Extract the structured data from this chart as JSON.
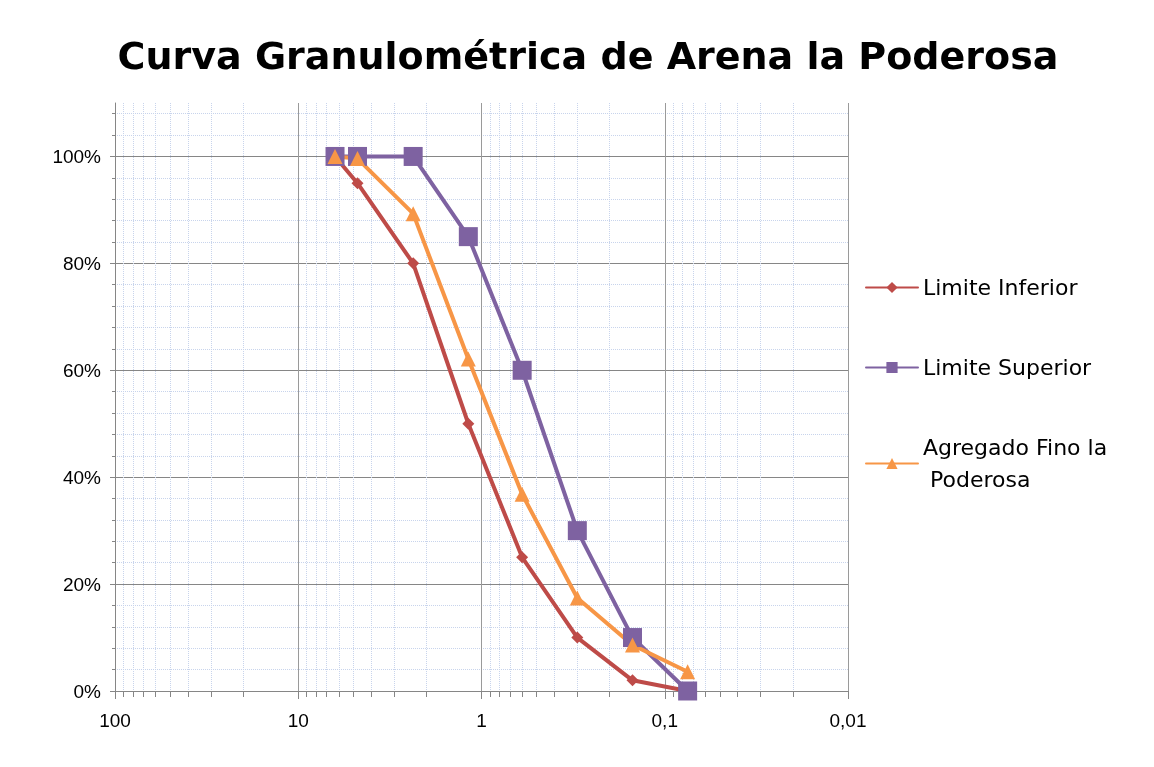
{
  "chart_data": {
    "type": "line",
    "title": "Curva Granulométrica de Arena la Poderosa",
    "x": [
      6.3,
      4.75,
      2.36,
      1.18,
      0.6,
      0.3,
      0.15,
      0.075
    ],
    "series": [
      {
        "name": "Limite Inferior",
        "color": "#be4b48",
        "marker": "diamond",
        "values": [
          100,
          95,
          80,
          50,
          25,
          10,
          2,
          0
        ]
      },
      {
        "name": "Limite Superior",
        "color": "#7e62a1",
        "marker": "square",
        "values": [
          100,
          100,
          100,
          85,
          60,
          30,
          10,
          0
        ]
      },
      {
        "name": "Agregado Fino la Poderosa",
        "color": "#f79646",
        "marker": "triangle",
        "values": [
          100,
          99.6,
          89.3,
          62.1,
          36.8,
          17.4,
          8.6,
          3.6
        ]
      }
    ],
    "log": "x",
    "xlim": [
      100,
      0.01
    ],
    "xticks": [
      100,
      10,
      1,
      {
        "value": 0.1,
        "label": "0,1"
      },
      {
        "value": 0.01,
        "label": "0,01"
      }
    ],
    "ylim": [
      0,
      110
    ],
    "yticks": [
      {
        "value": 0,
        "label": "0%"
      },
      {
        "value": 20,
        "label": "20%"
      },
      {
        "value": 40,
        "label": "40%"
      },
      {
        "value": 60,
        "label": "60%"
      },
      {
        "value": 80,
        "label": "80%"
      },
      {
        "value": 100,
        "label": "100%"
      }
    ],
    "grid": true,
    "legend": "right",
    "line_style": "solid"
  }
}
